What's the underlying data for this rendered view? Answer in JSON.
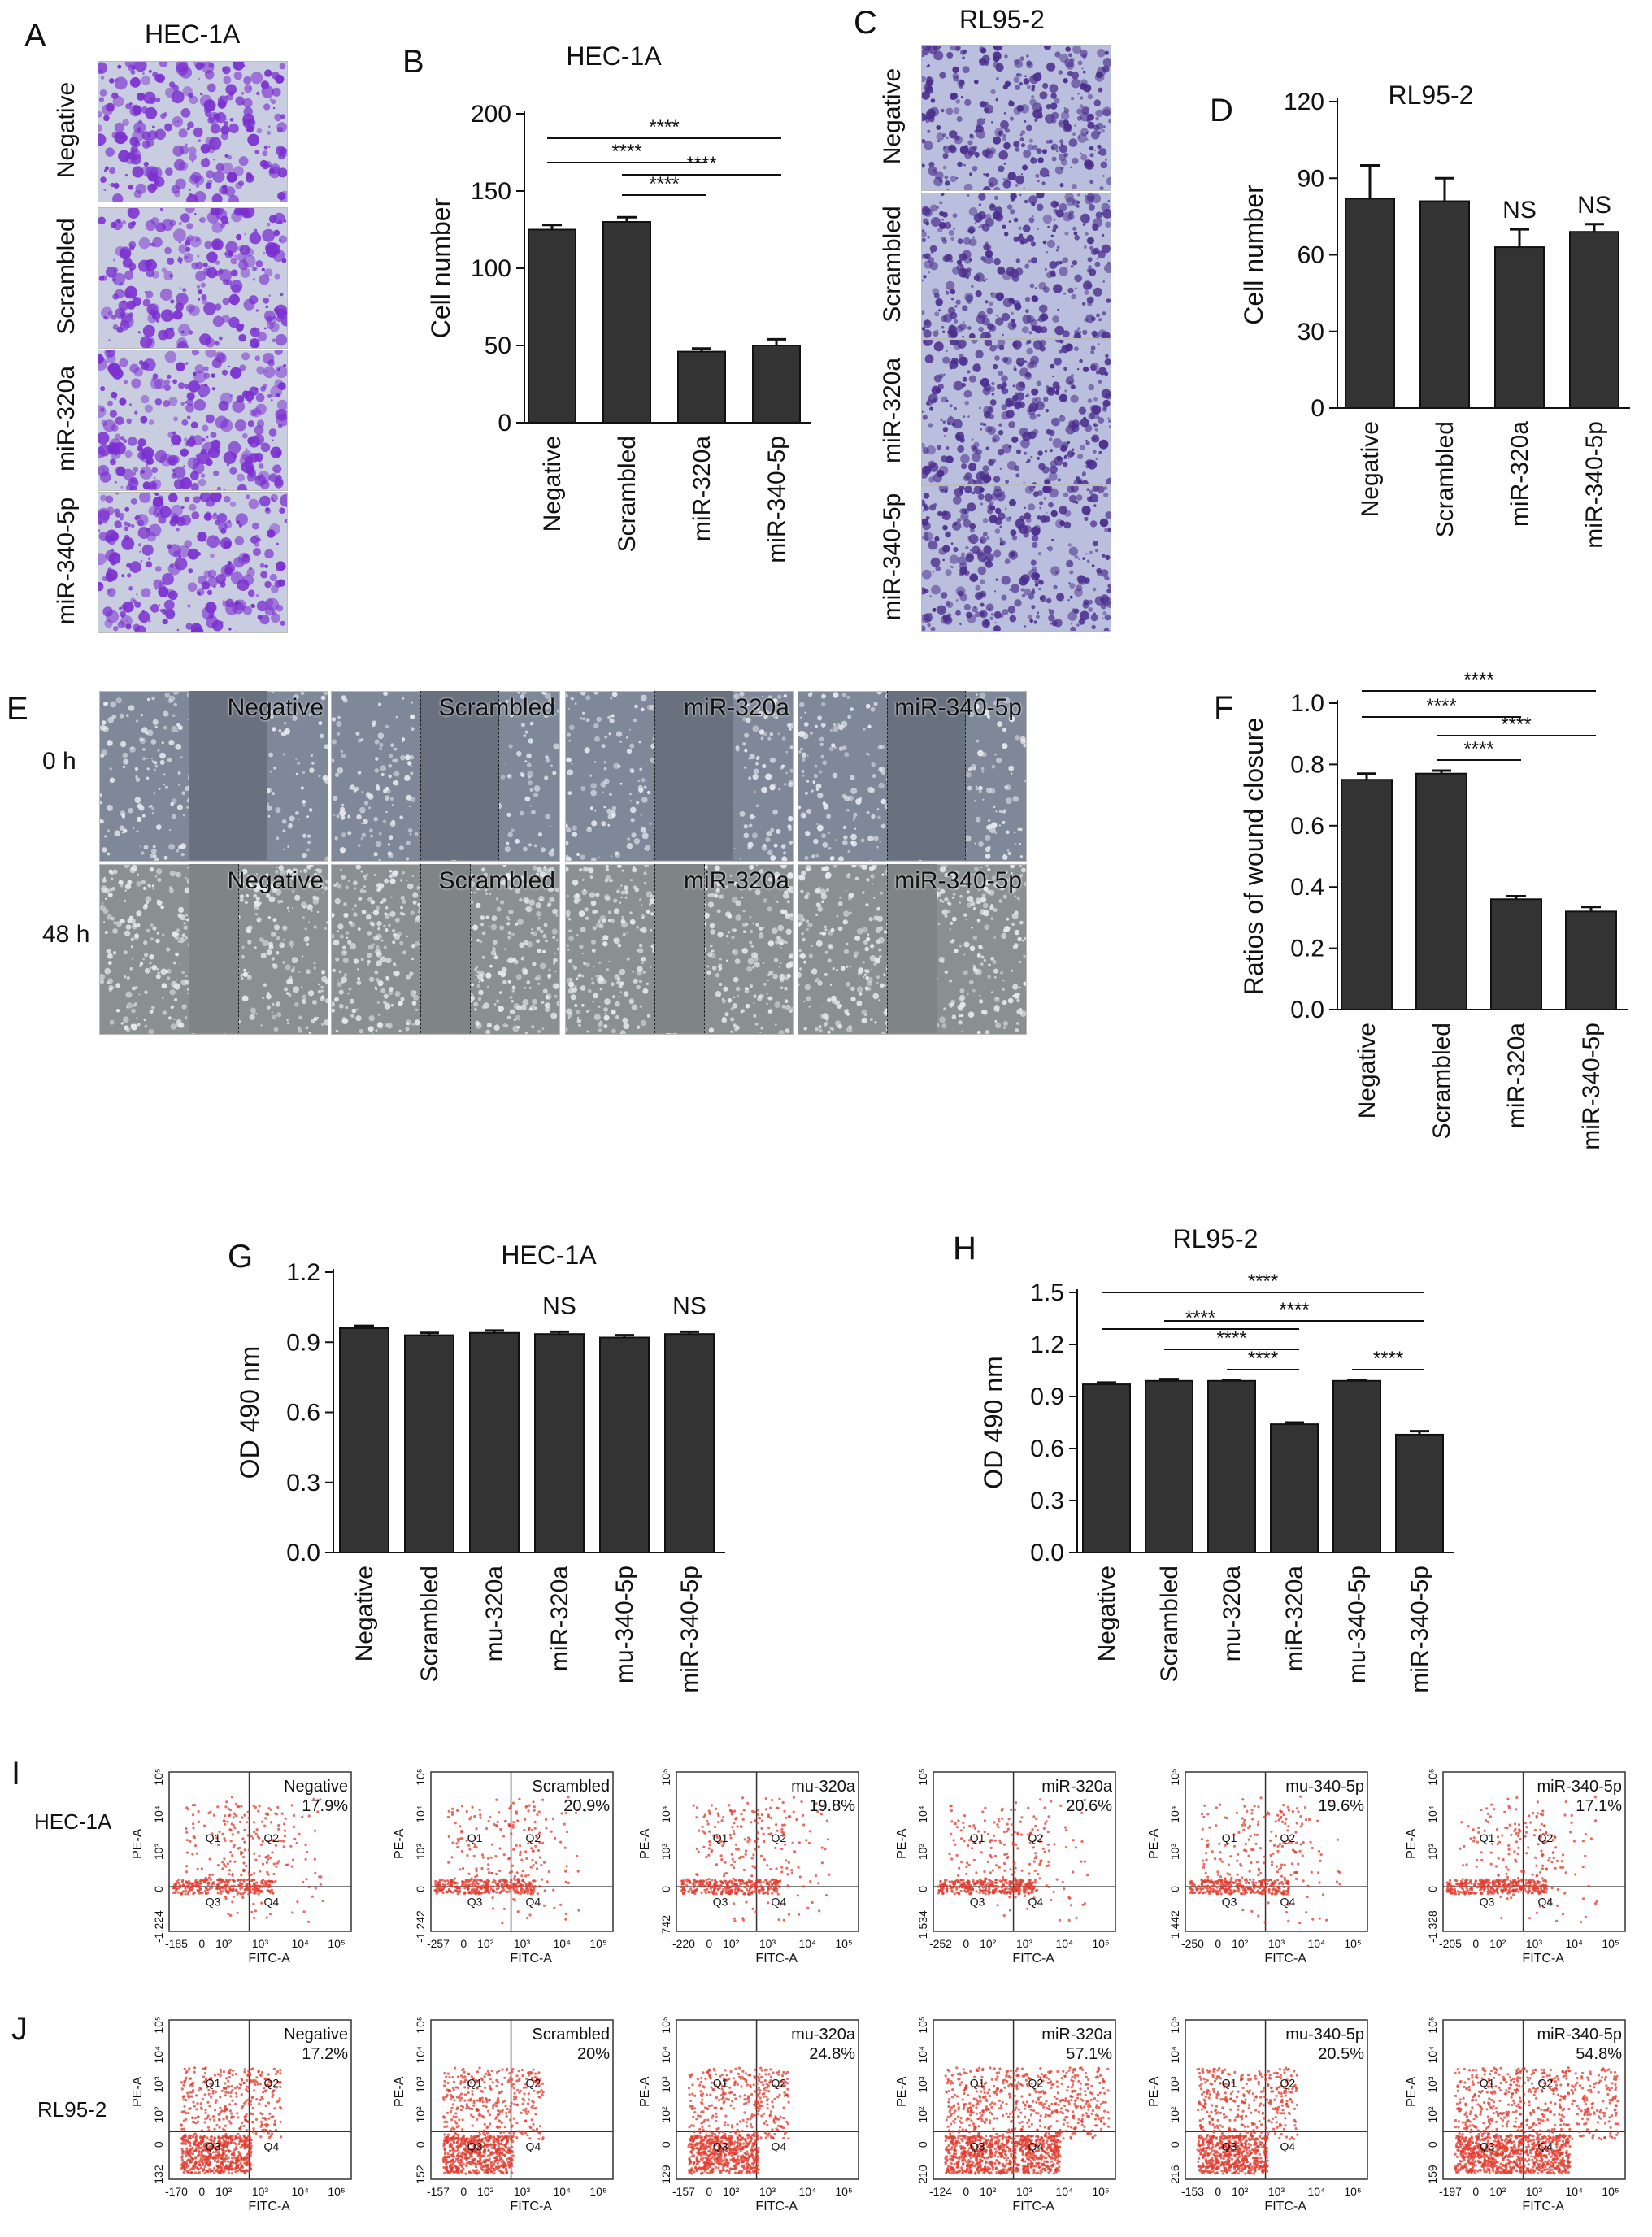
{
  "panels": {
    "A": {
      "letter": "A",
      "title": "HEC-1A",
      "rows": [
        "Negative",
        "Scrambled",
        "miR-320a",
        "miR-340-5p"
      ]
    },
    "C": {
      "letter": "C",
      "title": "RL95-2",
      "rows": [
        "Negative",
        "Scrambled",
        "miR-320a",
        "miR-340-5p"
      ]
    },
    "E": {
      "letter": "E",
      "times": [
        "0 h",
        "48 h"
      ],
      "conditions": [
        "Negative",
        "Scrambled",
        "miR-320a",
        "miR-340-5p"
      ]
    },
    "I": {
      "letter": "I",
      "row_label": "HEC-1A"
    },
    "J": {
      "letter": "J",
      "row_label": "RL95-2"
    }
  },
  "chart_data": [
    {
      "id": "B",
      "letter": "B",
      "type": "bar",
      "title": "HEC-1A",
      "ylabel": "Cell number",
      "categories": [
        "Negative",
        "Scrambled",
        "miR-320a",
        "miR-340-5p"
      ],
      "values": [
        125,
        130,
        46,
        50
      ],
      "errors": [
        3,
        3,
        2,
        4
      ],
      "ylim": [
        0,
        200
      ],
      "yticks": [
        "0",
        "50",
        "100",
        "150",
        "200"
      ],
      "annotations": [
        "****",
        "****",
        "****",
        "****"
      ]
    },
    {
      "id": "D",
      "letter": "D",
      "type": "bar",
      "title": "RL95-2",
      "ylabel": "Cell number",
      "categories": [
        "Negative",
        "Scrambled",
        "miR-320a",
        "miR-340-5p"
      ],
      "values": [
        82,
        81,
        63,
        69
      ],
      "errors": [
        13,
        9,
        7,
        3
      ],
      "ylim": [
        0,
        120
      ],
      "yticks": [
        "0",
        "30",
        "60",
        "90",
        "120"
      ],
      "annotations": [
        "NS",
        "NS"
      ]
    },
    {
      "id": "F",
      "letter": "F",
      "type": "bar",
      "title": "",
      "ylabel": "Ratios of wound closure",
      "categories": [
        "Negative",
        "Scrambled",
        "miR-320a",
        "miR-340-5p"
      ],
      "values": [
        0.75,
        0.77,
        0.36,
        0.32
      ],
      "errors": [
        0.02,
        0.01,
        0.01,
        0.015
      ],
      "ylim": [
        0,
        1.0
      ],
      "yticks": [
        "0.0",
        "0.2",
        "0.4",
        "0.6",
        "0.8",
        "1.0"
      ],
      "annotations": [
        "****",
        "****",
        "****",
        "****"
      ]
    },
    {
      "id": "G",
      "letter": "G",
      "type": "bar",
      "title": "HEC-1A",
      "ylabel": "OD 490 nm",
      "categories": [
        "Negative",
        "Scrambled",
        "mu-320a",
        "miR-320a",
        "mu-340-5p",
        "miR-340-5p"
      ],
      "values": [
        0.96,
        0.93,
        0.94,
        0.935,
        0.92,
        0.935
      ],
      "errors": [
        0.01,
        0.01,
        0.01,
        0.01,
        0.01,
        0.01
      ],
      "ylim": [
        0,
        1.2
      ],
      "yticks": [
        "0.0",
        "0.3",
        "0.6",
        "0.9",
        "1.2"
      ],
      "annotations": [
        "NS",
        "NS"
      ]
    },
    {
      "id": "H",
      "letter": "H",
      "type": "bar",
      "title": "RL95-2",
      "ylabel": "OD 490 nm",
      "categories": [
        "Negative",
        "Scrambled",
        "mu-320a",
        "miR-320a",
        "mu-340-5p",
        "miR-340-5p"
      ],
      "values": [
        0.97,
        0.99,
        0.99,
        0.74,
        0.99,
        0.68
      ],
      "errors": [
        0.01,
        0.01,
        0.005,
        0.01,
        0.005,
        0.02
      ],
      "ylim": [
        0,
        1.5
      ],
      "yticks": [
        "0.0",
        "0.3",
        "0.6",
        "0.9",
        "1.2",
        "1.5"
      ],
      "annotations": [
        "****",
        "****",
        "****",
        "****",
        "****",
        "****"
      ]
    },
    {
      "id": "I",
      "type": "scatter",
      "cell_line": "HEC-1A",
      "xlabel": "FITC-A",
      "ylabel": "PE-A",
      "quadrants": [
        "Q1",
        "Q2",
        "Q3",
        "Q4"
      ],
      "plots": [
        {
          "label": "Negative",
          "percent": "17.9%",
          "xticks": [
            "-185",
            "0",
            "10²",
            "10³",
            "10⁴",
            "10⁵"
          ],
          "yticks": [
            "-1,224",
            "0",
            "10³",
            "10⁴",
            "10⁵"
          ]
        },
        {
          "label": "Scrambled",
          "percent": "20.9%",
          "xticks": [
            "-257",
            "0",
            "10²",
            "10³",
            "10⁴",
            "10⁵"
          ],
          "yticks": [
            "-1,242",
            "0",
            "10³",
            "10⁴",
            "10⁵"
          ]
        },
        {
          "label": "mu-320a",
          "percent": "19.8%",
          "xticks": [
            "-220",
            "0",
            "10²",
            "10³",
            "10⁴",
            "10⁵"
          ],
          "yticks": [
            "-742",
            "0",
            "10³",
            "10⁴",
            "10⁵"
          ]
        },
        {
          "label": "miR-320a",
          "percent": "20.6%",
          "xticks": [
            "-252",
            "0",
            "10²",
            "10³",
            "10⁴",
            "10⁵"
          ],
          "yticks": [
            "-1,534",
            "0",
            "10³",
            "10⁴",
            "10⁵"
          ]
        },
        {
          "label": "mu-340-5p",
          "percent": "19.6%",
          "xticks": [
            "-250",
            "0",
            "10²",
            "10³",
            "10⁴",
            "10⁵"
          ],
          "yticks": [
            "-1,442",
            "0",
            "10³",
            "10⁴",
            "10⁵"
          ]
        },
        {
          "label": "miR-340-5p",
          "percent": "17.1%",
          "xticks": [
            "-205",
            "0",
            "10²",
            "10³",
            "10⁴",
            "10⁵"
          ],
          "yticks": [
            "-1,328",
            "0",
            "10³",
            "10⁴",
            "10⁵"
          ]
        }
      ]
    },
    {
      "id": "J",
      "type": "scatter",
      "cell_line": "RL95-2",
      "xlabel": "FITC-A",
      "ylabel": "PE-A",
      "quadrants": [
        "Q1",
        "Q2",
        "Q3",
        "Q4"
      ],
      "plots": [
        {
          "label": "Negative",
          "percent": "17.2%",
          "xticks": [
            "-170",
            "0",
            "10²",
            "10³",
            "10⁴",
            "10⁵"
          ],
          "yticks": [
            "132",
            "0",
            "10²",
            "10³",
            "10⁴",
            "10⁵"
          ]
        },
        {
          "label": "Scrambled",
          "percent": "20%",
          "xticks": [
            "-157",
            "0",
            "10²",
            "10³",
            "10⁴",
            "10⁵"
          ],
          "yticks": [
            "152",
            "0",
            "10²",
            "10³",
            "10⁴",
            "10⁵"
          ]
        },
        {
          "label": "mu-320a",
          "percent": "24.8%",
          "xticks": [
            "-157",
            "0",
            "10²",
            "10³",
            "10⁴",
            "10⁵"
          ],
          "yticks": [
            "129",
            "0",
            "10²",
            "10³",
            "10⁴",
            "10⁵"
          ]
        },
        {
          "label": "miR-320a",
          "percent": "57.1%",
          "xticks": [
            "-124",
            "0",
            "10²",
            "10³",
            "10⁴",
            "10⁵"
          ],
          "yticks": [
            "210",
            "0",
            "10²",
            "10³",
            "10⁴",
            "10⁵"
          ]
        },
        {
          "label": "mu-340-5p",
          "percent": "20.5%",
          "xticks": [
            "-153",
            "0",
            "10²",
            "10³",
            "10⁴",
            "10⁵"
          ],
          "yticks": [
            "216",
            "0",
            "10²",
            "10³",
            "10⁴",
            "10⁵"
          ]
        },
        {
          "label": "miR-340-5p",
          "percent": "54.8%",
          "xticks": [
            "-197",
            "0",
            "10²",
            "10³",
            "10⁴",
            "10⁵"
          ],
          "yticks": [
            "159",
            "0",
            "10²",
            "10³",
            "10⁴",
            "10⁵"
          ]
        }
      ]
    }
  ]
}
